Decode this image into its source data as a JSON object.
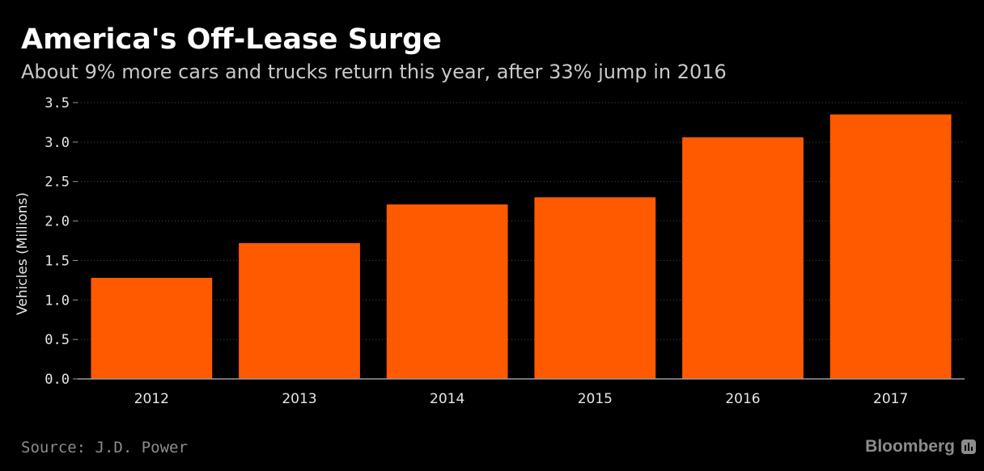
{
  "header": {
    "title": "America's Off-Lease Surge",
    "subtitle": "About 9% more cars and trucks return this year, after 33% jump in 2016"
  },
  "footer": {
    "source": "Source: J.D. Power",
    "brand": "Bloomberg",
    "brand_icon": "bar-chart-icon"
  },
  "colors": {
    "background": "#000000",
    "bar": "#ff5a00",
    "grid": "#4a4a4a",
    "axis": "#9a9a9a"
  },
  "chart_data": {
    "type": "bar",
    "title": "America's Off-Lease Surge",
    "subtitle": "About 9% more cars and trucks return this year, after 33% jump in 2016",
    "categories": [
      "2012",
      "2013",
      "2014",
      "2015",
      "2016",
      "2017"
    ],
    "values": [
      1.28,
      1.72,
      2.21,
      2.3,
      3.06,
      3.35
    ],
    "xlabel": "",
    "ylabel": "Vehicles (Millions)",
    "ylim": [
      0,
      3.5
    ],
    "yticks": [
      "0.0",
      "0.5",
      "1.0",
      "1.5",
      "2.0",
      "2.5",
      "3.0",
      "3.5"
    ],
    "grid": true,
    "legend": "none"
  }
}
